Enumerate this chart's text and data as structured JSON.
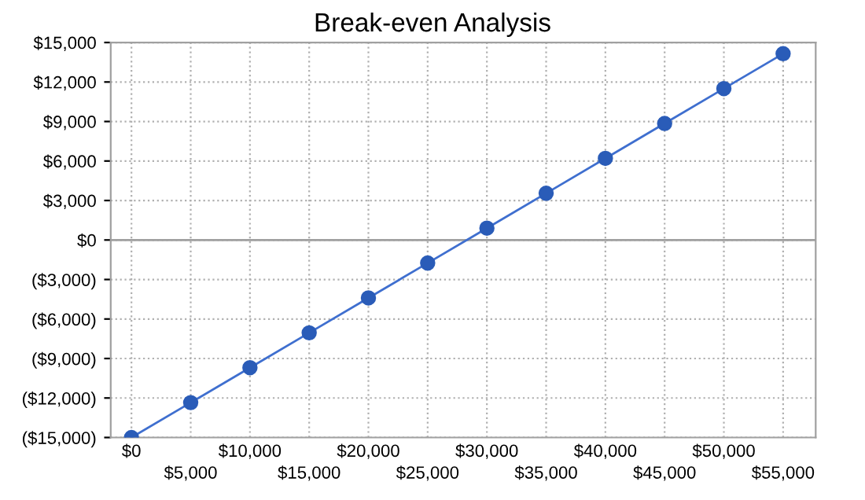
{
  "chart_data": {
    "type": "line",
    "title": "Break-even Analysis",
    "categories": [
      "$0",
      "$5,000",
      "$10,000",
      "$15,000",
      "$20,000",
      "$25,000",
      "$30,000",
      "$35,000",
      "$40,000",
      "$45,000",
      "$50,000",
      "$55,000"
    ],
    "series": [
      {
        "color": "#3f6fcf",
        "values": [
          -15000,
          -12350,
          -9700,
          -7050,
          -4400,
          -1750,
          900,
          3550,
          6200,
          8850,
          11500,
          14150
        ]
      }
    ],
    "ylim": [
      -15000,
      15000
    ],
    "yticks": [
      {
        "value": -15000,
        "label": "($15,000)"
      },
      {
        "value": -12000,
        "label": "($12,000)"
      },
      {
        "value": -9000,
        "label": "($9,000)"
      },
      {
        "value": -6000,
        "label": "($6,000)"
      },
      {
        "value": -3000,
        "label": "($3,000)"
      },
      {
        "value": 0,
        "label": "$0"
      },
      {
        "value": 3000,
        "label": "$3,000"
      },
      {
        "value": 6000,
        "label": "$6,000"
      },
      {
        "value": 9000,
        "label": "$9,000"
      },
      {
        "value": 12000,
        "label": "$12,000"
      },
      {
        "value": 15000,
        "label": "$15,000"
      }
    ],
    "ref_lines": [
      {
        "axis": "y",
        "value": 0,
        "color": "#a0a0a0",
        "line_style": "solid"
      }
    ],
    "grid": true,
    "marker": "circle",
    "line_style": "solid",
    "legend": false
  }
}
